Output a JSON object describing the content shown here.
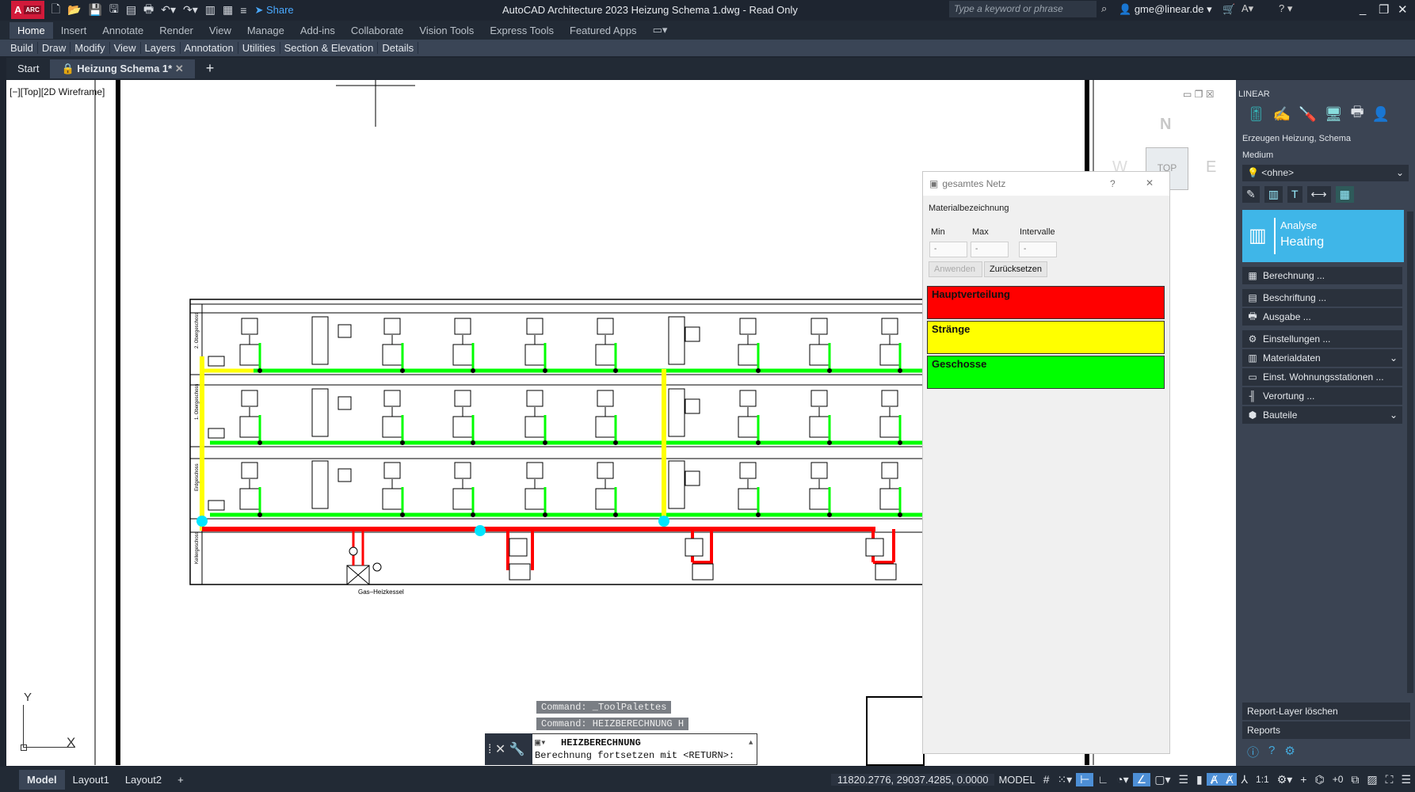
{
  "app": {
    "logo": "A",
    "logo_badge": "ARC",
    "title": "AutoCAD Architecture 2023   Heizung Schema 1.dwg - Read Only",
    "share": "Share",
    "search_placeholder": "Type a keyword or phrase",
    "user": "gme@linear.de"
  },
  "ribbon": {
    "tabs": [
      "Home",
      "Insert",
      "Annotate",
      "Render",
      "View",
      "Manage",
      "Add-ins",
      "Collaborate",
      "Vision Tools",
      "Express Tools",
      "Featured Apps"
    ],
    "active_tab": "Home",
    "panels": [
      "Build",
      "Draw",
      "Modify",
      "View",
      "Layers",
      "Annotation",
      "Utilities",
      "Section & Elevation",
      "Details"
    ]
  },
  "doc_tabs": {
    "start": "Start",
    "active": "Heizung Schema 1*"
  },
  "viewport": {
    "label": "[−][Top][2D Wireframe]",
    "viewcube": {
      "n": "N",
      "w": "W",
      "e": "E",
      "top": "TOP"
    },
    "ucs": {
      "x": "X",
      "y": "Y"
    }
  },
  "drawing": {
    "boiler_label": "Gas–Heizkessel",
    "floors": [
      "2. Obergeschoss",
      "1. Obergeschoss",
      "Erdgeschoss",
      "Kellergeschoss"
    ],
    "colors": {
      "hauptverteilung": "#ff0000",
      "straenge": "#ffff00",
      "geschosse": "#00ff00",
      "marker": "#00e5ff"
    }
  },
  "command": {
    "history": [
      "Command: _ToolPalettes",
      "Command: HEIZBERECHNUNG H"
    ],
    "current": "HEIZBERECHNUNG",
    "prompt": "Berechnung fortsetzen mit <RETURN>:"
  },
  "dialog": {
    "title": "gesamtes Netz",
    "help": "?",
    "close": "✕",
    "material_label": "Materialbezeichnung",
    "min_label": "Min",
    "max_label": "Max",
    "intervalle_label": "Intervalle",
    "min_value": "-",
    "max_value": "-",
    "intervalle_value": "-",
    "apply": "Anwenden",
    "reset": "Zurücksetzen",
    "bands": [
      {
        "label": "Hauptverteilung",
        "color": "#ff0000"
      },
      {
        "label": "Stränge",
        "color": "#ffff00"
      },
      {
        "label": "Geschosse",
        "color": "#00ff00"
      }
    ]
  },
  "linear_panel": {
    "title": "LINEAR",
    "section": "Erzeugen Heizung, Schema",
    "medium_label": "Medium",
    "medium_value": "<ohne>",
    "tile": {
      "line1": "Analyse",
      "line2": "Heating",
      "color": "#3fb6e8"
    },
    "items": [
      {
        "label": "Berechnung ...",
        "icon": "calculator-icon"
      },
      {
        "label": "Beschriftung ...",
        "icon": "label-icon"
      },
      {
        "label": "Ausgabe ...",
        "icon": "printer-icon"
      },
      {
        "label": "Einstellungen ...",
        "icon": "gear-icon"
      },
      {
        "label": "Materialdaten",
        "icon": "material-icon"
      },
      {
        "label": "Einst. Wohnungsstationen ...",
        "icon": "station-icon"
      },
      {
        "label": "Verortung ...",
        "icon": "location-icon"
      },
      {
        "label": "Bauteile",
        "icon": "cube-icon"
      }
    ],
    "bottom": [
      "Report-Layer löschen",
      "Reports"
    ]
  },
  "status": {
    "tabs": [
      "Model",
      "Layout1",
      "Layout2"
    ],
    "coords": "11820.2776, 29037.4285, 0.0000",
    "mode": "MODEL",
    "scale": "1:1",
    "offset": "+0"
  }
}
